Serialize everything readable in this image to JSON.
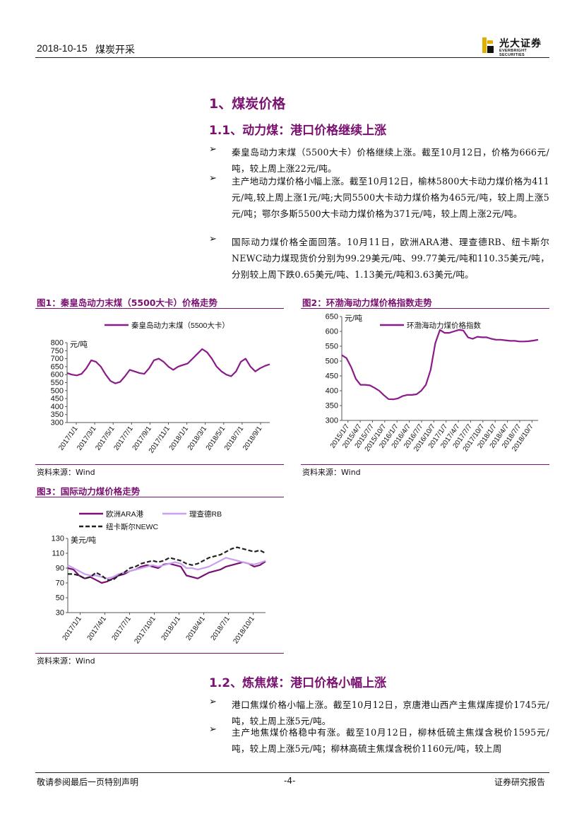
{
  "header": {
    "date": "2018-10-15",
    "industry": "煤炭开采",
    "logo_cn": "光大证券",
    "logo_en": "EVERBRIGHT SECURITIES",
    "brand_color": "#e0b000"
  },
  "section": {
    "h1": "1、煤炭价格",
    "h2_1": "1.1、动力煤：港口价格继续上涨",
    "bullets_1": [
      "秦皇岛动力末煤（5500大卡）价格继续上涨。截至10月12日，价格为666元/吨，较上周上涨22元/吨。",
      "主产地动力煤价格小幅上涨。截至10月12日，榆林5800大卡动力煤价格为411元/吨,较上周上涨1元/吨;大同5500大卡动力煤价格为465元/吨，较上周上涨5元/吨；鄂尔多斯5500大卡动力煤价格为371元/吨，较上周上涨2元/吨。",
      "国际动力煤价格全面回落。10月11日，欧洲ARA港、理查德RB、纽卡斯尔NEWC动力煤现货价分别为99.29美元/吨、99.77美元/吨和110.35美元/吨，分别较上周下跌0.65美元/吨、1.13美元/吨和3.63美元/吨。"
    ],
    "h2_2": "1.2、炼焦煤：港口价格小幅上涨",
    "bullets_2": [
      "港口焦煤价格小幅上涨。截至10月12日，京唐港山西产主焦煤库提价1745元/吨，较上周上涨5元/吨。",
      "主产地焦煤价格稳中有涨。截至10月12日，柳林低硫主焦煤含税价1595元/吨，较上周上涨5元/吨；柳林高硫主焦煤含税价1160元/吨，较上周"
    ]
  },
  "figures": {
    "fig1_title": "图1：秦皇岛动力末煤（5500大卡）价格走势",
    "fig2_title": "图2：环渤海动力煤价格指数走势",
    "fig3_title": "图3：国际动力煤价格走势",
    "source": "资料来源：Wind"
  },
  "footer": {
    "left": "敬请参阅最后一页特别声明",
    "center": "-4-",
    "right": "证券研究报告"
  },
  "chart_data": [
    {
      "type": "line",
      "legend": [
        "秦皇岛动力末煤（5500大卡）"
      ],
      "unit_label": "元/吨",
      "ylim": [
        300,
        800
      ],
      "yticks": [
        300,
        350,
        400,
        450,
        500,
        550,
        600,
        650,
        700,
        750,
        800
      ],
      "xticks": [
        "2017/1/1",
        "2017/3/1",
        "2017/5/1",
        "2017/7/1",
        "2017/9/1",
        "2017/11/1",
        "2018/1/1",
        "2018/3/1",
        "2018/5/1",
        "2018/7/1",
        "2018/9/1"
      ],
      "color": "#8b1a8b",
      "series": [
        {
          "name": "秦皇岛动力末煤（5500大卡）",
          "values": [
            610,
            600,
            595,
            605,
            640,
            690,
            680,
            650,
            600,
            560,
            545,
            555,
            590,
            630,
            620,
            610,
            605,
            640,
            690,
            700,
            680,
            650,
            630,
            650,
            660,
            670,
            700,
            730,
            760,
            740,
            700,
            650,
            620,
            600,
            590,
            620,
            680,
            700,
            650,
            620,
            640,
            655,
            665
          ]
        }
      ]
    },
    {
      "type": "line",
      "legend": [
        "环渤海动力煤价格指数"
      ],
      "unit_label": "元/吨",
      "ylim": [
        300,
        650
      ],
      "yticks": [
        300,
        350,
        400,
        450,
        500,
        550,
        600,
        650
      ],
      "xticks": [
        "2015/1/7",
        "2015/4/7",
        "2015/7/7",
        "2015/10/7",
        "2016/1/7",
        "2016/4/7",
        "2016/7/7",
        "2016/10/7",
        "2017/1/7",
        "2017/4/7",
        "2017/7/7",
        "2017/10/7",
        "2018/1/7",
        "2018/4/7",
        "2018/7/7",
        "2018/10/7"
      ],
      "color": "#8b1a8b",
      "series": [
        {
          "name": "环渤海动力煤价格指数",
          "values": [
            520,
            510,
            480,
            440,
            420,
            420,
            418,
            410,
            400,
            385,
            372,
            371,
            374,
            382,
            386,
            386,
            388,
            400,
            420,
            470,
            560,
            605,
            595,
            595,
            600,
            605,
            603,
            580,
            575,
            582,
            580,
            580,
            575,
            572,
            572,
            570,
            568,
            568,
            566,
            566,
            567,
            569,
            572
          ]
        }
      ]
    },
    {
      "type": "line",
      "legend": [
        "欧洲ARA港",
        "理查德RB",
        "纽卡斯尔NEWC"
      ],
      "unit_label": "美元/吨",
      "ylim": [
        30,
        130
      ],
      "yticks": [
        30,
        50,
        70,
        90,
        110,
        130
      ],
      "xticks": [
        "2017/1/1",
        "2017/4/1",
        "2017/7/1",
        "2017/10/1",
        "2018/1/1",
        "2018/4/1",
        "2018/7/1",
        "2018/10/1"
      ],
      "series": [
        {
          "name": "欧洲ARA港",
          "color": "#7a1070",
          "values": [
            90,
            88,
            80,
            76,
            78,
            74,
            70,
            72,
            76,
            80,
            82,
            86,
            88,
            92,
            94,
            92,
            90,
            95,
            96,
            94,
            92,
            80,
            78,
            76,
            80,
            84,
            86,
            88,
            92,
            94,
            96,
            98,
            96,
            92,
            94,
            99
          ]
        },
        {
          "name": "理查德RB",
          "color": "#c9a0f0",
          "values": [
            94,
            90,
            86,
            82,
            80,
            80,
            78,
            76,
            78,
            82,
            84,
            86,
            88,
            90,
            92,
            94,
            92,
            94,
            96,
            98,
            96,
            90,
            90,
            88,
            90,
            92,
            96,
            100,
            104,
            102,
            100,
            98,
            96,
            95,
            97,
            100
          ]
        },
        {
          "name": "纽卡斯尔NEWC",
          "color": "#222222",
          "values": [
            82,
            82,
            80,
            76,
            78,
            84,
            80,
            74,
            74,
            80,
            84,
            90,
            92,
            96,
            98,
            100,
            98,
            100,
            104,
            102,
            100,
            96,
            94,
            96,
            100,
            104,
            106,
            108,
            112,
            116,
            118,
            116,
            114,
            112,
            114,
            110
          ]
        }
      ]
    }
  ]
}
